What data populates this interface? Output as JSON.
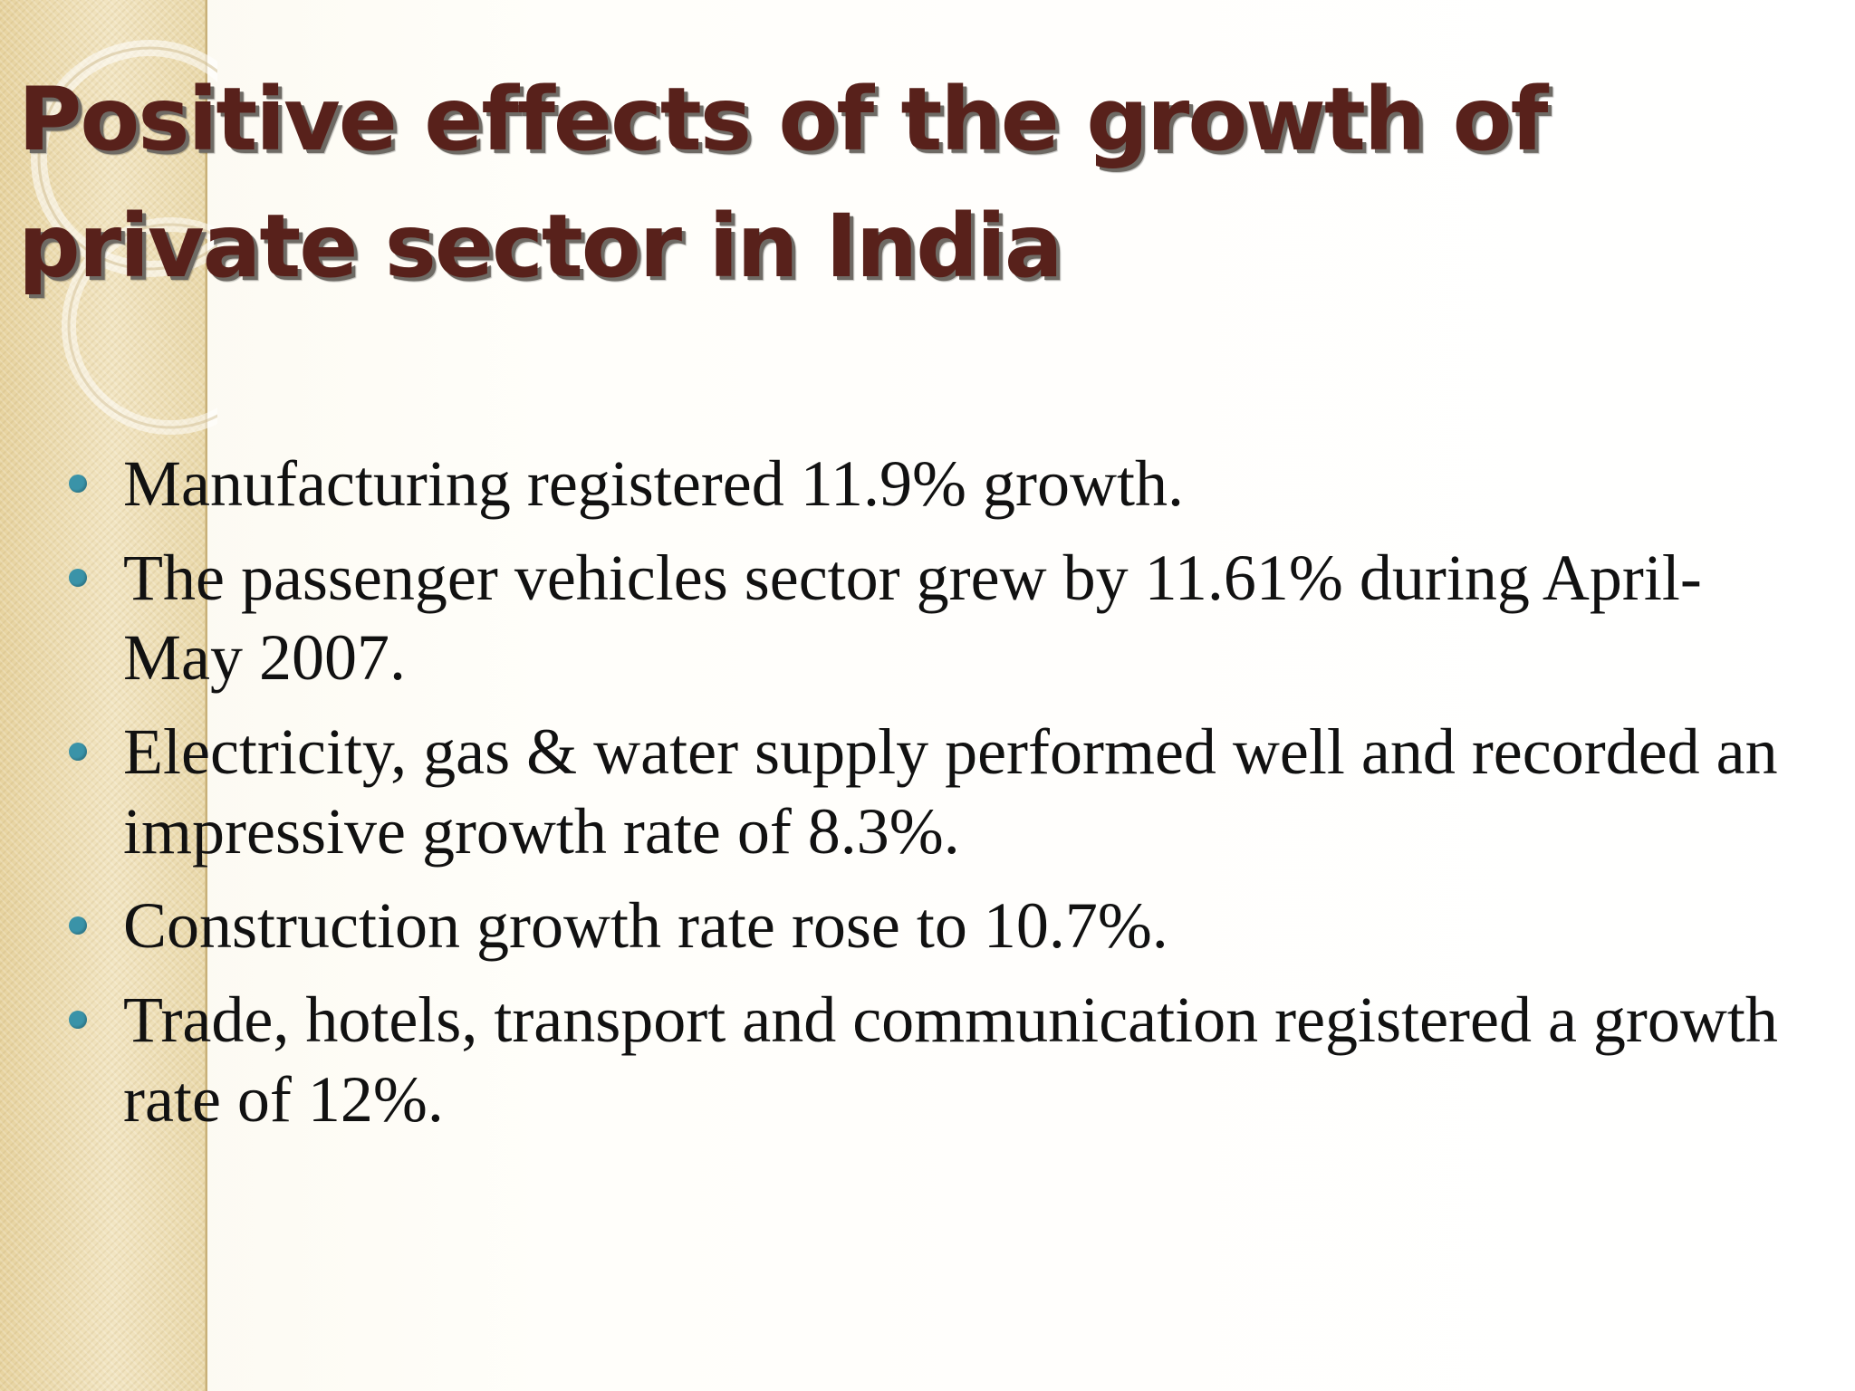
{
  "slide": {
    "title": "Positive effects of the growth of private sector in India",
    "bullets": [
      {
        "text": "Manufacturing registered 11.9% growth."
      },
      {
        "text": "The passenger vehicles sector grew by 11.61% during April-May 2007."
      },
      {
        "text": "Electricity, gas & water supply performed well and recorded an impressive growth rate of 8.3%."
      },
      {
        "text": "Construction growth rate rose to 10.7%."
      },
      {
        "text": "Trade, hotels, transport and communication registered a growth rate of 12%."
      }
    ]
  },
  "colors": {
    "title": "#58211b",
    "title_shadow": "#6e6a64",
    "bullet_text": "#111111",
    "bullet_marker": "#3a93a8",
    "side_band": "#eddcb0"
  },
  "icons": {
    "bullet_marker": "round-bullet-icon"
  }
}
